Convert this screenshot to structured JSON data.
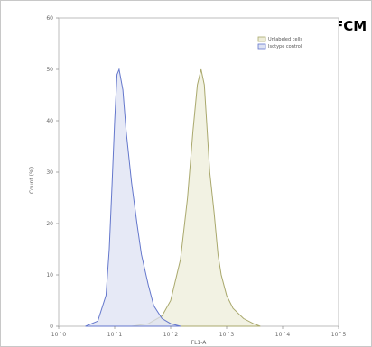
{
  "badge": "FCM",
  "chart_data": {
    "type": "area",
    "xscale": "log",
    "xlim": [
      1,
      100000
    ],
    "ylim": [
      0,
      60
    ],
    "xlabel": "FL1-A",
    "ylabel": "Count (%)",
    "x_ticks": [
      "10^0",
      "10^1",
      "10^2",
      "10^3",
      "10^4",
      "10^5"
    ],
    "y_ticks": [
      "0",
      "10",
      "20",
      "30",
      "40",
      "50",
      "60"
    ],
    "legend_position": "top-right",
    "series": [
      {
        "name": "Unlabeled cells",
        "color": "#a9a86c",
        "fill": "#eeedd9",
        "x": [
          20,
          40,
          70,
          100,
          150,
          200,
          250,
          300,
          350,
          400,
          450,
          500,
          600,
          700,
          800,
          1000,
          1300,
          2000,
          3000,
          4000
        ],
        "y": [
          0,
          0.5,
          2,
          5,
          13,
          25,
          38,
          47,
          50,
          47,
          38,
          30,
          22,
          14,
          10,
          6,
          3.5,
          1.5,
          0.5,
          0
        ]
      },
      {
        "name": "Isotype control",
        "color": "#6477cc",
        "fill": "#dde2f3",
        "x": [
          3,
          5,
          7,
          8,
          9,
          10,
          11,
          12,
          14,
          16,
          20,
          25,
          30,
          40,
          50,
          70,
          100,
          150
        ],
        "y": [
          0,
          1,
          6,
          15,
          28,
          40,
          49,
          50,
          46,
          38,
          28,
          20,
          14,
          8,
          4,
          1.5,
          0.5,
          0
        ]
      }
    ]
  }
}
